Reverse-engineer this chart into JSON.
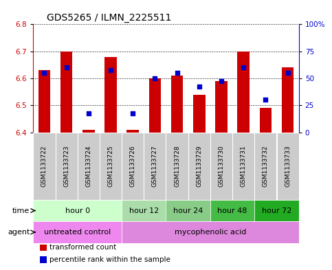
{
  "title": "GDS5265 / ILMN_2225511",
  "samples": [
    "GSM1133722",
    "GSM1133723",
    "GSM1133724",
    "GSM1133725",
    "GSM1133726",
    "GSM1133727",
    "GSM1133728",
    "GSM1133729",
    "GSM1133730",
    "GSM1133731",
    "GSM1133732",
    "GSM1133733"
  ],
  "bar_values": [
    6.63,
    6.7,
    6.41,
    6.68,
    6.41,
    6.6,
    6.61,
    6.54,
    6.59,
    6.7,
    6.49,
    6.64
  ],
  "bar_bottom": 6.4,
  "blue_dot_values": [
    6.62,
    6.64,
    6.47,
    6.63,
    6.47,
    6.6,
    6.62,
    6.57,
    6.59,
    6.64,
    6.52,
    6.62
  ],
  "ylim_left": [
    6.4,
    6.8
  ],
  "ylim_right": [
    0,
    100
  ],
  "yticks_left": [
    6.4,
    6.5,
    6.6,
    6.7,
    6.8
  ],
  "yticks_right": [
    0,
    25,
    50,
    75,
    100
  ],
  "ytick_labels_right": [
    "0",
    "25",
    "50",
    "75",
    "100%"
  ],
  "bar_color": "#cc0000",
  "dot_color": "#0000cc",
  "time_groups": [
    {
      "label": "hour 0",
      "start": 0,
      "end": 3,
      "color": "#ccffcc"
    },
    {
      "label": "hour 12",
      "start": 4,
      "end": 5,
      "color": "#aaddaa"
    },
    {
      "label": "hour 24",
      "start": 6,
      "end": 7,
      "color": "#88cc88"
    },
    {
      "label": "hour 48",
      "start": 8,
      "end": 9,
      "color": "#44bb44"
    },
    {
      "label": "hour 72",
      "start": 10,
      "end": 11,
      "color": "#22aa22"
    }
  ],
  "agent_groups": [
    {
      "label": "untreated control",
      "start": 0,
      "end": 3,
      "color": "#ee88ee"
    },
    {
      "label": "mycophenolic acid",
      "start": 4,
      "end": 11,
      "color": "#dd88dd"
    }
  ],
  "legend_items": [
    {
      "label": "transformed count",
      "color": "#cc0000",
      "marker": "s"
    },
    {
      "label": "percentile rank within the sample",
      "color": "#0000cc",
      "marker": "s"
    }
  ],
  "left_axis_color": "#cc0000",
  "right_axis_color": "#0000cc",
  "tick_label_fontsize": 7.5,
  "sample_label_fontsize": 6.5,
  "row_label_fontsize": 8,
  "title_fontsize": 10
}
